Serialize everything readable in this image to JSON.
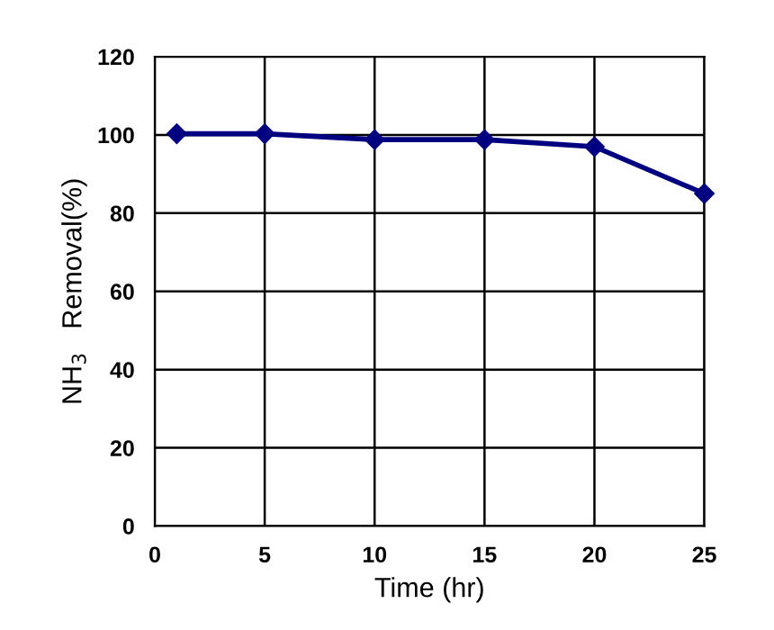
{
  "chart_data": {
    "type": "line",
    "xlabel": "Time (hr)",
    "ylabel": "NH$_{3}$   Removal(%)",
    "x": [
      1,
      5,
      10,
      15,
      20,
      25
    ],
    "series": [
      {
        "color": "#000080",
        "values": [
          100.3,
          100.3,
          98.8,
          98.8,
          97,
          85
        ]
      }
    ],
    "xlim": [
      0,
      25
    ],
    "ylim": [
      0,
      120
    ],
    "xticks": [
      0,
      5,
      10,
      15,
      20,
      25
    ],
    "yticks": [
      0,
      20,
      40,
      60,
      80,
      100,
      120
    ],
    "grid": true,
    "marker": "diamond",
    "line_style": "solid"
  }
}
